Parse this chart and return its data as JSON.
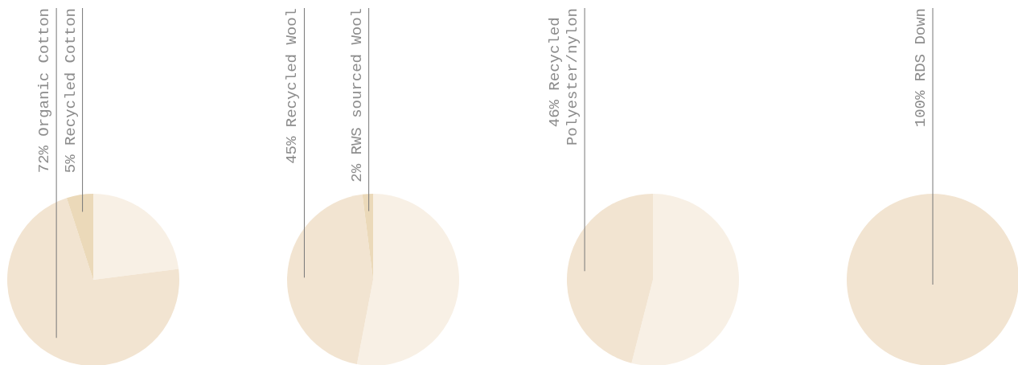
{
  "chart_data": [
    {
      "type": "pie",
      "categories": [
        null,
        "72% Organic Cotton",
        "5% Recycled Cotton"
      ],
      "values": [
        23,
        72,
        5
      ],
      "colors": [
        "#f8f0e5",
        "#f2e4d1",
        "#ebd9b9"
      ]
    },
    {
      "type": "pie",
      "categories": [
        null,
        "45% Recycled Wool",
        "2% RWS sourced Wool"
      ],
      "values": [
        53,
        45,
        2
      ],
      "colors": [
        "#f8f0e5",
        "#f2e4d1",
        "#ebd9b9"
      ]
    },
    {
      "type": "pie",
      "categories": [
        null,
        "46% Recycled Polyester/nylon"
      ],
      "values": [
        54,
        46
      ],
      "colors": [
        "#f8f0e5",
        "#f2e4d1"
      ]
    },
    {
      "type": "pie",
      "categories": [
        "100% RDS Down"
      ],
      "values": [
        100
      ],
      "colors": [
        "#f2e4d1"
      ]
    }
  ]
}
